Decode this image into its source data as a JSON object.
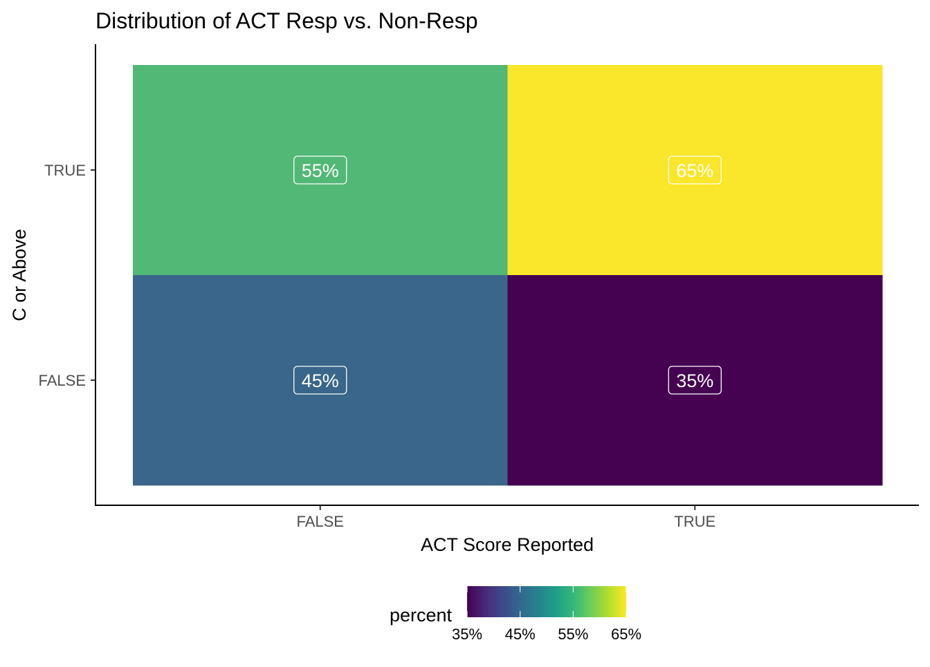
{
  "chart_data": {
    "type": "heatmap",
    "title": "Distribution of ACT Resp vs. Non-Resp",
    "xlabel": "ACT Score Reported",
    "ylabel": "C or Above",
    "x_categories": [
      "FALSE",
      "TRUE"
    ],
    "y_categories": [
      "FALSE",
      "TRUE"
    ],
    "cells": [
      {
        "x": "FALSE",
        "y": "TRUE",
        "value": 55,
        "label": "55%",
        "color": "#52B875"
      },
      {
        "x": "TRUE",
        "y": "TRUE",
        "value": 65,
        "label": "65%",
        "color": "#FAE62A"
      },
      {
        "x": "FALSE",
        "y": "FALSE",
        "value": 45,
        "label": "45%",
        "color": "#39668A"
      },
      {
        "x": "TRUE",
        "y": "FALSE",
        "value": 35,
        "label": "35%",
        "color": "#440251"
      }
    ],
    "legend": {
      "title": "percent",
      "position": "bottom",
      "range": [
        35,
        65
      ],
      "ticks": [
        35,
        45,
        55,
        65
      ],
      "tick_labels": [
        "35%",
        "45%",
        "55%",
        "65%"
      ],
      "colors": [
        "#440154",
        "#482878",
        "#3E4A89",
        "#31688E",
        "#26828E",
        "#1F9E89",
        "#35B779",
        "#6DCD59",
        "#B4DE2C",
        "#FDE725"
      ]
    },
    "grid": false
  }
}
